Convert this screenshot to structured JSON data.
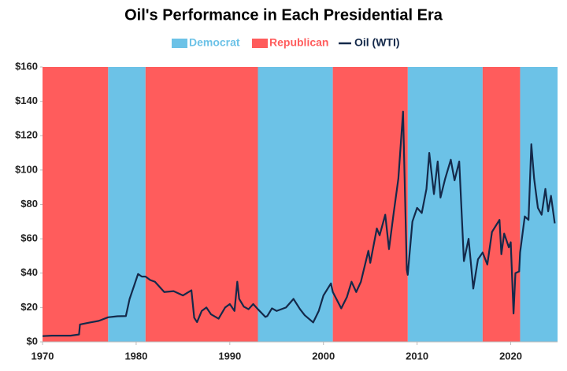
{
  "chart_data": {
    "type": "line",
    "title": "Oil's Performance in Each Presidential Era",
    "xlim": [
      1970,
      2025
    ],
    "xticks": [
      1970,
      1980,
      1990,
      2000,
      2010,
      2020
    ],
    "ylim": [
      0,
      160
    ],
    "yticks": [
      {
        "value": 0,
        "label": "$0"
      },
      {
        "value": 20,
        "label": "$20"
      },
      {
        "value": 40,
        "label": "$40"
      },
      {
        "value": 60,
        "label": "$60"
      },
      {
        "value": 80,
        "label": "$80"
      },
      {
        "value": 100,
        "label": "$100"
      },
      {
        "value": 120,
        "label": "$120"
      },
      {
        "value": 140,
        "label": "$140"
      },
      {
        "value": 160,
        "label": "$160"
      }
    ],
    "grid": false,
    "legend": "top",
    "series": [
      {
        "name": "Democrat",
        "type": "band",
        "color": "#6cc2e7",
        "values": [
          [
            1977,
            1981
          ],
          [
            1993,
            2001
          ],
          [
            2009,
            2017
          ],
          [
            2021,
            2025
          ]
        ]
      },
      {
        "name": "Republican",
        "type": "band",
        "color": "#ff5c5c",
        "values": [
          [
            1970,
            1977
          ],
          [
            1981,
            1993
          ],
          [
            2001,
            2009
          ],
          [
            2017,
            2021
          ]
        ]
      },
      {
        "name": "Oil (WTI)",
        "type": "line",
        "color": "#14294a",
        "x": [
          1970,
          1971,
          1972,
          1973,
          1973.9,
          1974,
          1975,
          1976,
          1977,
          1978,
          1978.9,
          1979.3,
          1979.8,
          1980.2,
          1980.6,
          1981,
          1981.5,
          1982,
          1983,
          1984,
          1985,
          1985.9,
          1986.2,
          1986.5,
          1987,
          1987.5,
          1988,
          1988.8,
          1989.5,
          1990,
          1990.5,
          1990.8,
          1991,
          1991.5,
          1992,
          1992.5,
          1993,
          1993.8,
          1994,
          1994.5,
          1995,
          1996,
          1996.8,
          1997.5,
          1998,
          1998.9,
          1999.5,
          2000,
          2000.8,
          2001,
          2001.9,
          2002.5,
          2003,
          2003.5,
          2004,
          2004.8,
          2005,
          2005.7,
          2006,
          2006.6,
          2007,
          2007.5,
          2008,
          2008.5,
          2008.9,
          2009,
          2009.5,
          2010,
          2010.5,
          2011,
          2011.3,
          2011.8,
          2012.2,
          2012.5,
          2013,
          2013.6,
          2014,
          2014.5,
          2015,
          2015.5,
          2016,
          2016.5,
          2017,
          2017.5,
          2018,
          2018.8,
          2019,
          2019.3,
          2019.8,
          2020,
          2020.3,
          2020.5,
          2020.9,
          2021,
          2021.5,
          2021.9,
          2022.2,
          2022.5,
          2022.9,
          2023.3,
          2023.7,
          2024,
          2024.3,
          2024.7
        ],
        "values": [
          3.35,
          3.6,
          3.6,
          3.6,
          4.3,
          10.1,
          11.2,
          12.2,
          14.3,
          14.9,
          15,
          25,
          33,
          39.5,
          38,
          38,
          36,
          35,
          29,
          29.5,
          27,
          30,
          14,
          11.5,
          18,
          20,
          16,
          13.5,
          20,
          22,
          18,
          35,
          25,
          20.5,
          19,
          22,
          19,
          14.5,
          15,
          19.5,
          18,
          20,
          25,
          19,
          15.5,
          11.3,
          18,
          27,
          34,
          29,
          19.5,
          26,
          35,
          29,
          35,
          53,
          46,
          66,
          62,
          74,
          54,
          75,
          95,
          134,
          42,
          39,
          70,
          78,
          75,
          89,
          110,
          86,
          105,
          84,
          95,
          106,
          94,
          105,
          47,
          60,
          31,
          48,
          52,
          45,
          64,
          71,
          51,
          63,
          55,
          58,
          16.5,
          40,
          41,
          52,
          73,
          71,
          115,
          95,
          78,
          74,
          89,
          76,
          85,
          69
        ]
      }
    ]
  }
}
